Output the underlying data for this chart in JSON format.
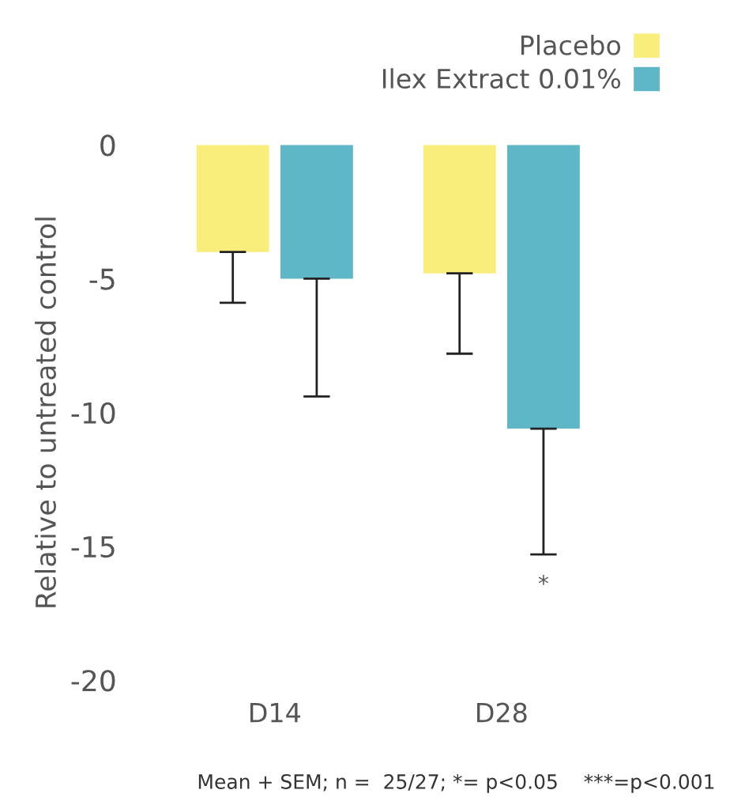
{
  "chart_data": {
    "type": "bar",
    "ylabel": "Relative to untreated control",
    "categories": [
      "D14",
      "D28"
    ],
    "series": [
      {
        "name": "Placebo",
        "color": "#f9ee7c",
        "values": [
          -4.0,
          -4.8
        ],
        "errors": [
          [
            -5.9,
            -4.0
          ],
          [
            -7.8,
            -4.8
          ]
        ]
      },
      {
        "name": "Ilex Extract 0.01%",
        "color": "#5db7c6",
        "values": [
          -5.0,
          -10.6
        ],
        "errors": [
          [
            -9.4,
            -5.0
          ],
          [
            -15.3,
            -10.6
          ]
        ]
      }
    ],
    "ylim": [
      -20,
      0
    ],
    "yticks": [
      -20,
      -15,
      -10,
      -5,
      0
    ],
    "legend": "top right",
    "grid": false,
    "annotations": [
      "*",
      "Mean + SEM; n =  25/27; *= p<0.05    ***=p<0.001"
    ]
  }
}
